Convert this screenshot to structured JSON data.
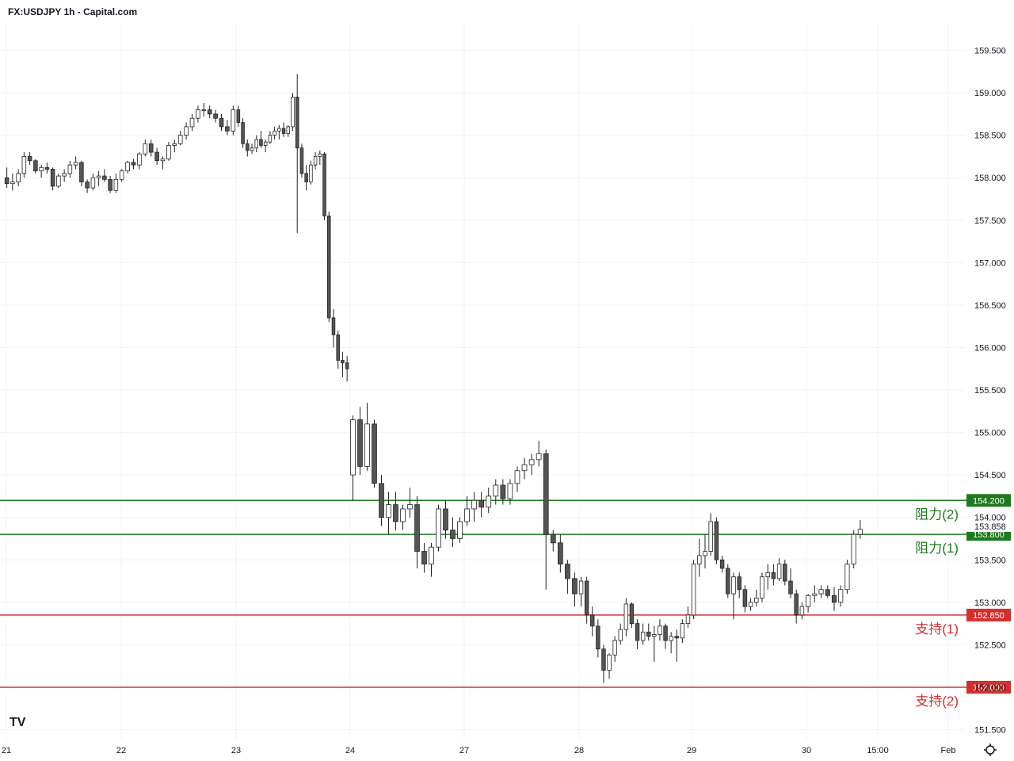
{
  "header": {
    "title": "FX:USDJPY 1h - Capital.com"
  },
  "colors": {
    "resistance": "#1e7a1e",
    "support": "#d32f2f",
    "candle_up": "#ffffff",
    "candle_down": "#555555",
    "wick": "#222222",
    "grid": "#f0f3fa"
  },
  "icons": {
    "logo": "tradingview-logo-icon",
    "settings": "gear-icon"
  },
  "chart_data": {
    "type": "candlestick",
    "title": "FX:USDJPY 1h - Capital.com",
    "ylim": [
      151.35,
      159.9
    ],
    "y_ticks": [
      "151.500",
      "152.000",
      "152.500",
      "153.000",
      "153.500",
      "154.000",
      "154.500",
      "155.000",
      "155.500",
      "156.000",
      "156.500",
      "157.000",
      "157.500",
      "158.000",
      "158.500",
      "159.000",
      "159.500"
    ],
    "x_ticks": [
      "21",
      "22",
      "23",
      "24",
      "27",
      "28",
      "29",
      "30",
      "15:00",
      "Feb"
    ],
    "last_price": "153.858",
    "levels": [
      {
        "label": "阻力(2)",
        "value": 154.2,
        "tag": "154.200",
        "kind": "resistance"
      },
      {
        "label": "阻力(1)",
        "value": 153.8,
        "tag": "153.800",
        "kind": "resistance"
      },
      {
        "label": "支持(1)",
        "value": 152.85,
        "tag": "152.850",
        "kind": "support"
      },
      {
        "label": "支持(2)",
        "value": 152.0,
        "tag": "152.000",
        "kind": "support"
      }
    ],
    "segments": [
      {
        "label": "21",
        "points": [
          [
            158.0,
            158.12,
            157.88,
            157.93
          ],
          [
            157.93,
            158.05,
            157.85,
            157.95
          ],
          [
            157.95,
            158.1,
            157.9,
            158.05
          ],
          [
            158.05,
            158.3,
            158.0,
            158.25
          ],
          [
            158.25,
            158.3,
            158.15,
            158.2
          ],
          [
            158.2,
            158.22,
            158.05,
            158.08
          ],
          [
            158.08,
            158.15,
            158.0,
            158.12
          ],
          [
            158.12,
            158.18,
            158.05,
            158.1
          ],
          [
            158.1,
            158.12,
            157.85,
            157.9
          ],
          [
            157.9,
            158.05,
            157.88,
            158.02
          ],
          [
            158.02,
            158.1,
            157.95,
            158.05
          ],
          [
            158.05,
            158.2,
            158.0,
            158.15
          ],
          [
            158.15,
            158.25,
            158.1,
            158.18
          ],
          [
            158.18,
            158.2,
            157.9,
            157.95
          ],
          [
            157.95,
            157.98,
            157.82,
            157.88
          ],
          [
            157.88,
            158.05,
            157.85,
            158.0
          ],
          [
            158.0,
            158.08,
            157.9,
            158.02
          ],
          [
            158.02,
            158.1,
            157.95,
            157.98
          ],
          [
            157.98,
            158.02,
            157.82,
            157.85
          ],
          [
            157.85,
            158.05,
            157.82,
            157.98
          ]
        ]
      },
      {
        "label": "22",
        "points": [
          [
            157.98,
            158.1,
            157.95,
            158.08
          ],
          [
            158.08,
            158.2,
            158.05,
            158.18
          ],
          [
            158.18,
            158.22,
            158.1,
            158.15
          ],
          [
            158.15,
            158.3,
            158.1,
            158.28
          ],
          [
            158.28,
            158.45,
            158.25,
            158.4
          ],
          [
            158.4,
            158.45,
            158.25,
            158.3
          ],
          [
            158.3,
            158.35,
            158.15,
            158.2
          ],
          [
            158.2,
            158.25,
            158.1,
            158.22
          ],
          [
            158.22,
            158.42,
            158.2,
            158.38
          ],
          [
            158.38,
            158.45,
            158.3,
            158.4
          ],
          [
            158.4,
            158.55,
            158.38,
            158.5
          ],
          [
            158.5,
            158.65,
            158.45,
            158.6
          ],
          [
            158.6,
            158.75,
            158.55,
            158.7
          ],
          [
            158.7,
            158.85,
            158.65,
            158.8
          ],
          [
            158.8,
            158.88,
            158.72,
            158.8
          ],
          [
            158.8,
            158.85,
            158.7,
            158.75
          ],
          [
            158.75,
            158.8,
            158.65,
            158.7
          ],
          [
            158.7,
            158.75,
            158.55,
            158.6
          ],
          [
            158.6,
            158.68,
            158.5,
            158.55
          ],
          [
            158.55,
            158.85,
            158.5,
            158.8
          ]
        ]
      },
      {
        "label": "23",
        "points": [
          [
            158.8,
            158.85,
            158.6,
            158.65
          ],
          [
            158.65,
            158.7,
            158.35,
            158.4
          ],
          [
            158.4,
            158.45,
            158.25,
            158.32
          ],
          [
            158.32,
            158.4,
            158.28,
            158.35
          ],
          [
            158.35,
            158.5,
            158.3,
            158.45
          ],
          [
            158.45,
            158.55,
            158.35,
            158.38
          ],
          [
            158.38,
            158.45,
            158.3,
            158.42
          ],
          [
            158.42,
            158.55,
            158.4,
            158.5
          ],
          [
            158.5,
            158.6,
            158.45,
            158.55
          ],
          [
            158.55,
            158.62,
            158.45,
            158.58
          ],
          [
            158.58,
            158.65,
            158.48,
            158.52
          ],
          [
            158.52,
            158.62,
            158.48,
            158.6
          ],
          [
            158.6,
            159.0,
            158.55,
            158.95
          ],
          [
            158.95,
            159.22,
            157.35,
            158.35
          ],
          [
            158.35,
            158.4,
            158.0,
            158.05
          ],
          [
            158.05,
            158.15,
            157.85,
            157.95
          ],
          [
            157.95,
            158.2,
            157.92,
            158.15
          ],
          [
            158.15,
            158.3,
            158.1,
            158.25
          ],
          [
            158.25,
            158.32,
            158.15,
            158.28
          ],
          [
            158.28,
            158.3,
            157.5,
            157.55
          ],
          [
            157.55,
            157.6,
            156.3,
            156.35
          ],
          [
            156.35,
            156.45,
            156.0,
            156.15
          ],
          [
            156.15,
            156.2,
            155.75,
            155.85
          ],
          [
            155.85,
            155.95,
            155.65,
            155.82
          ],
          [
            155.82,
            155.9,
            155.6,
            155.75
          ]
        ]
      },
      {
        "label": "24",
        "points": [
          [
            154.5,
            155.2,
            154.2,
            155.15
          ],
          [
            155.15,
            155.3,
            154.5,
            154.6
          ],
          [
            154.6,
            155.35,
            154.55,
            155.1
          ],
          [
            155.1,
            155.15,
            154.35,
            154.4
          ],
          [
            154.4,
            154.5,
            153.9,
            154.0
          ],
          [
            154.0,
            154.3,
            153.8,
            154.15
          ],
          [
            154.15,
            154.3,
            153.85,
            153.95
          ],
          [
            153.95,
            154.15,
            153.85,
            154.1
          ],
          [
            154.1,
            154.35,
            154.0,
            154.15
          ],
          [
            154.15,
            154.25,
            153.4,
            153.6
          ],
          [
            153.6,
            153.7,
            153.35,
            153.45
          ],
          [
            153.45,
            153.7,
            153.3,
            153.65
          ],
          [
            153.65,
            154.15,
            153.6,
            154.1
          ],
          [
            154.1,
            154.2,
            153.75,
            153.85
          ],
          [
            153.85,
            154.0,
            153.65,
            153.75
          ],
          [
            153.75,
            154.0,
            153.7,
            153.95
          ]
        ]
      },
      {
        "label": "27",
        "points": [
          [
            153.95,
            154.25,
            153.9,
            154.1
          ],
          [
            154.1,
            154.3,
            153.95,
            154.2
          ],
          [
            154.2,
            154.3,
            154.0,
            154.12
          ],
          [
            154.12,
            154.35,
            154.05,
            154.25
          ],
          [
            154.25,
            154.45,
            154.15,
            154.38
          ],
          [
            154.38,
            154.45,
            154.15,
            154.22
          ],
          [
            154.22,
            154.45,
            154.15,
            154.4
          ],
          [
            154.4,
            154.6,
            154.3,
            154.55
          ],
          [
            154.55,
            154.7,
            154.45,
            154.62
          ],
          [
            154.62,
            154.75,
            154.5,
            154.68
          ],
          [
            154.68,
            154.9,
            154.6,
            154.75
          ],
          [
            154.75,
            154.8,
            153.15,
            153.8
          ],
          [
            153.8,
            153.85,
            153.6,
            153.7
          ],
          [
            153.7,
            153.8,
            153.35,
            153.45
          ],
          [
            153.45,
            153.5,
            153.1,
            153.28
          ],
          [
            153.28,
            153.35,
            152.95,
            153.1
          ]
        ]
      },
      {
        "label": "28",
        "points": [
          [
            153.1,
            153.3,
            152.95,
            153.25
          ],
          [
            153.25,
            153.3,
            152.75,
            152.85
          ],
          [
            152.85,
            152.95,
            152.6,
            152.72
          ],
          [
            152.72,
            152.8,
            152.35,
            152.45
          ],
          [
            152.45,
            152.5,
            152.05,
            152.2
          ],
          [
            152.2,
            152.4,
            152.1,
            152.38
          ],
          [
            152.38,
            152.6,
            152.3,
            152.55
          ],
          [
            152.55,
            152.75,
            152.5,
            152.68
          ],
          [
            152.68,
            153.05,
            152.6,
            152.98
          ],
          [
            152.98,
            153.0,
            152.7,
            152.75
          ],
          [
            152.75,
            152.8,
            152.45,
            152.55
          ],
          [
            152.55,
            152.75,
            152.5,
            152.65
          ],
          [
            152.65,
            152.75,
            152.55,
            152.6
          ],
          [
            152.6,
            152.72,
            152.3,
            152.62
          ],
          [
            152.62,
            152.8,
            152.55,
            152.72
          ],
          [
            152.72,
            152.75,
            152.45,
            152.55
          ],
          [
            152.55,
            152.65,
            152.4,
            152.6
          ],
          [
            152.6,
            152.68,
            152.3,
            152.58
          ],
          [
            152.58,
            152.8,
            152.52,
            152.75
          ],
          [
            152.75,
            152.95,
            152.7,
            152.85
          ]
        ]
      },
      {
        "label": "29",
        "points": [
          [
            152.85,
            153.5,
            152.8,
            153.45
          ],
          [
            153.45,
            153.75,
            153.3,
            153.55
          ],
          [
            153.55,
            153.8,
            153.4,
            153.6
          ],
          [
            153.6,
            154.05,
            153.55,
            153.95
          ],
          [
            153.95,
            154.0,
            153.45,
            153.5
          ],
          [
            153.5,
            153.55,
            153.35,
            153.4
          ],
          [
            153.4,
            153.45,
            153.05,
            153.1
          ],
          [
            153.1,
            153.35,
            152.8,
            153.3
          ],
          [
            153.3,
            153.35,
            153.05,
            153.15
          ],
          [
            153.15,
            153.2,
            152.88,
            152.95
          ],
          [
            152.95,
            153.05,
            152.9,
            153.0
          ],
          [
            153.0,
            153.15,
            152.95,
            153.05
          ],
          [
            153.05,
            153.35,
            153.0,
            153.3
          ],
          [
            153.3,
            153.45,
            153.15,
            153.35
          ],
          [
            153.35,
            153.45,
            153.2,
            153.28
          ],
          [
            153.28,
            153.52,
            153.25,
            153.45
          ],
          [
            153.45,
            153.5,
            153.2,
            153.25
          ],
          [
            153.25,
            153.4,
            153.05,
            153.1
          ],
          [
            153.1,
            153.15,
            152.75,
            152.85
          ],
          [
            152.85,
            153.0,
            152.8,
            152.95
          ]
        ]
      },
      {
        "label": "30",
        "points": [
          [
            152.95,
            153.1,
            152.88,
            153.08
          ],
          [
            153.08,
            153.2,
            153.0,
            153.1
          ],
          [
            153.1,
            153.2,
            153.05,
            153.15
          ],
          [
            153.15,
            153.2,
            153.05,
            153.08
          ],
          [
            153.08,
            153.18,
            152.9,
            153.0
          ],
          [
            153.0,
            153.2,
            152.95,
            153.15
          ],
          [
            153.15,
            153.5,
            153.1,
            153.45
          ],
          [
            153.45,
            153.85,
            153.4,
            153.8
          ],
          [
            153.8,
            153.97,
            153.75,
            153.86
          ]
        ]
      }
    ]
  }
}
